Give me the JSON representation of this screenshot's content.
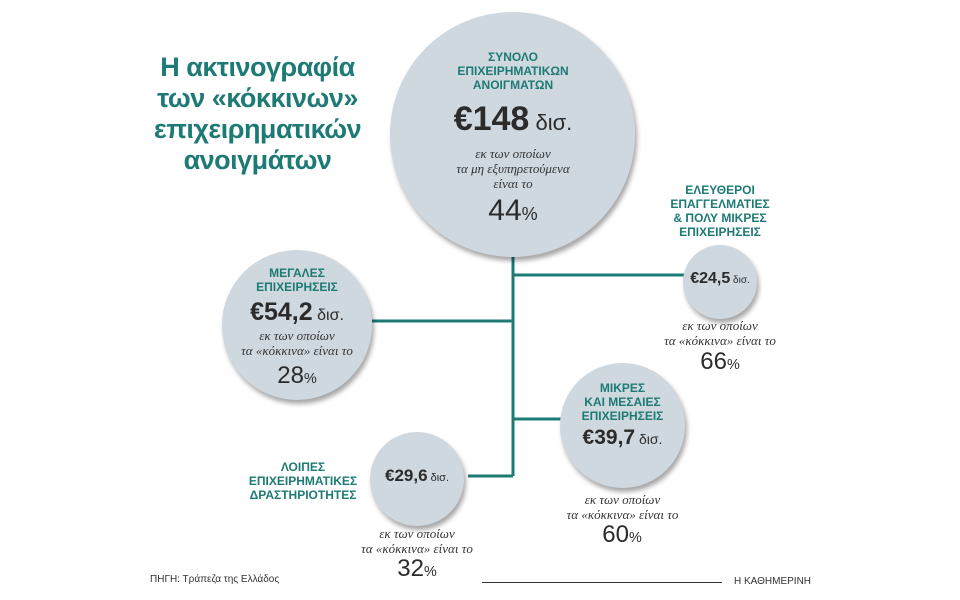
{
  "title": {
    "line1": "Η ακτινογραφία",
    "line2": "των «κόκκινων»",
    "line3": "επιχειρηματικών",
    "line4": "ανοιγμάτων"
  },
  "total": {
    "caption1": "ΣΥΝΟΛΟ",
    "caption2": "ΕΠΙΧΕΙΡΗΜΑΤΙΚΩΝ",
    "caption3": "ΑΝΟΙΓΜΑΤΩΝ",
    "amount": "€148",
    "unit": " δισ.",
    "note1": "εκ των οποίων",
    "note2": "τα μη εξυπηρετούμενα",
    "note3": "είναι το",
    "percent": "44",
    "percent_sign": "%"
  },
  "large": {
    "caption1": "ΜΕΓΑΛΕΣ",
    "caption2": "ΕΠΙΧΕΙΡΗΣΕΙΣ",
    "amount": "€54,2",
    "unit": " δισ.",
    "note1": "εκ των οποίων",
    "note2": "τα «κόκκινα» είναι το",
    "percent": "28",
    "percent_sign": "%"
  },
  "freelancers": {
    "caption1": "ΕΛΕΥΘΕΡΟΙ",
    "caption2": "ΕΠΑΓΓΕΛΜΑΤΙΕΣ",
    "caption3": "& ΠΟΛΥ ΜΙΚΡΕΣ",
    "caption4": "ΕΠΙΧΕΙΡΗΣΕΙΣ",
    "amount": "€24,5",
    "unit": " δισ.",
    "note1": "εκ των οποίων",
    "note2": "τα «κόκκινα» είναι το",
    "percent": "66",
    "percent_sign": "%"
  },
  "sme": {
    "caption1": "ΜΙΚΡΕΣ",
    "caption2": "ΚΑΙ ΜΕΣΑΙΕΣ",
    "caption3": "ΕΠΙΧΕΙΡΗΣΕΙΣ",
    "amount": "€39,7",
    "unit": " δισ.",
    "note1": "εκ των οποίων",
    "note2": "τα «κόκκινα» είναι το",
    "percent": "60",
    "percent_sign": "%"
  },
  "other": {
    "caption1": "ΛΟΙΠΕΣ",
    "caption2": "ΕΠΙΧΕΙΡΗΜΑΤΙΚΕΣ",
    "caption3": "ΔΡΑΣΤΗΡΙΟΤΗΤΕΣ",
    "amount": "€29,6",
    "unit": " δισ.",
    "note1": "εκ των οποίων",
    "note2": "τα «κόκκινα» είναι το",
    "percent": "32",
    "percent_sign": "%"
  },
  "footer": {
    "source": "ΠΗΓΗ: Τράπεζα της Ελλάδος",
    "publisher": "Η ΚΑΘΗΜΕΡΙΝΗ"
  },
  "colors": {
    "accent": "#1d7a74",
    "circle": "#cfd8df",
    "connector": "#1d7a74"
  }
}
